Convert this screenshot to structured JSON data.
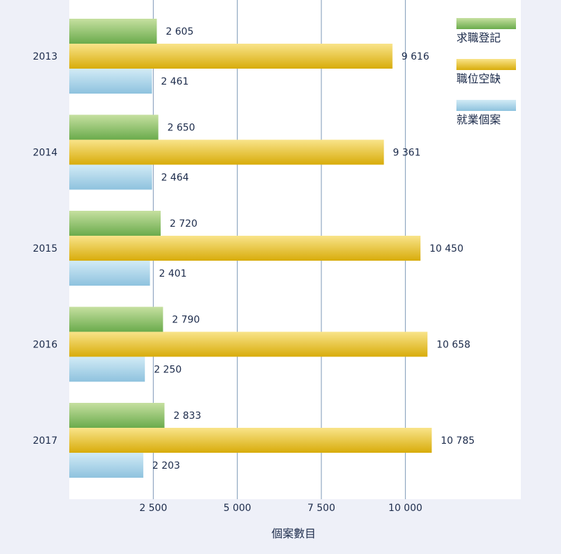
{
  "chart_data": {
    "type": "bar",
    "orientation": "horizontal",
    "categories": [
      "2013",
      "2014",
      "2015",
      "2016",
      "2017"
    ],
    "series": [
      {
        "name": "求職登記",
        "color": "#7ab95c",
        "values": [
          2605,
          2650,
          2720,
          2790,
          2833
        ],
        "labels": [
          "2 605",
          "2 650",
          "2 720",
          "2 790",
          "2 833"
        ]
      },
      {
        "name": "職位空缺",
        "color": "#e0b822",
        "values": [
          9616,
          9361,
          10450,
          10658,
          10785
        ],
        "labels": [
          "9 616",
          "9 361",
          "10 450",
          "10 658",
          "10 785"
        ]
      },
      {
        "name": "就業個案",
        "color": "#9fcbe3",
        "values": [
          2461,
          2464,
          2401,
          2250,
          2203
        ],
        "labels": [
          "2 461",
          "2 464",
          "2 401",
          "2 250",
          "2 203"
        ]
      }
    ],
    "xlabel": "個案數目",
    "xlim": [
      0,
      13500
    ],
    "xticks": [
      2500,
      5000,
      7500,
      10000
    ],
    "xtick_labels": [
      "2 500",
      "5 000",
      "7 500",
      "10  000"
    ],
    "grid": true,
    "legend_position": "top-right"
  }
}
